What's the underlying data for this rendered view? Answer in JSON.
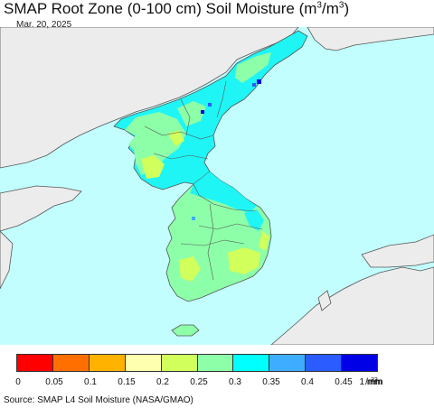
{
  "header": {
    "title_main": "SMAP Root Zone (0-100 cm) Soil Moisture (m",
    "title_sup1": "3",
    "title_mid": "/m",
    "title_sup2": "3",
    "title_end": ")",
    "date": "Mar. 20, 2025"
  },
  "legend": {
    "colors": [
      "#ff0000",
      "#ff6f00",
      "#ffb300",
      "#ffffb0",
      "#d1ff5c",
      "#8dffa8",
      "#00ffff",
      "#3fadff",
      "#2a5cff",
      "#0000e6"
    ],
    "labels": [
      "0",
      "0.05",
      "0.1",
      "0.15",
      "0.2",
      "0.25",
      "0.3",
      "0.35",
      "0.4",
      "0.45"
    ],
    "unit_last": "1 mm",
    "unit_sup1": "3",
    "unit_mid": "/mm",
    "unit_sup2": "3"
  },
  "footer": {
    "source": "Source: SMAP L4 Soil Moisture (NASA/GMAO)"
  },
  "map": {
    "ocean_color": "#c2fefe",
    "land_outside_color": "#ececec",
    "border_color": "#555555"
  }
}
